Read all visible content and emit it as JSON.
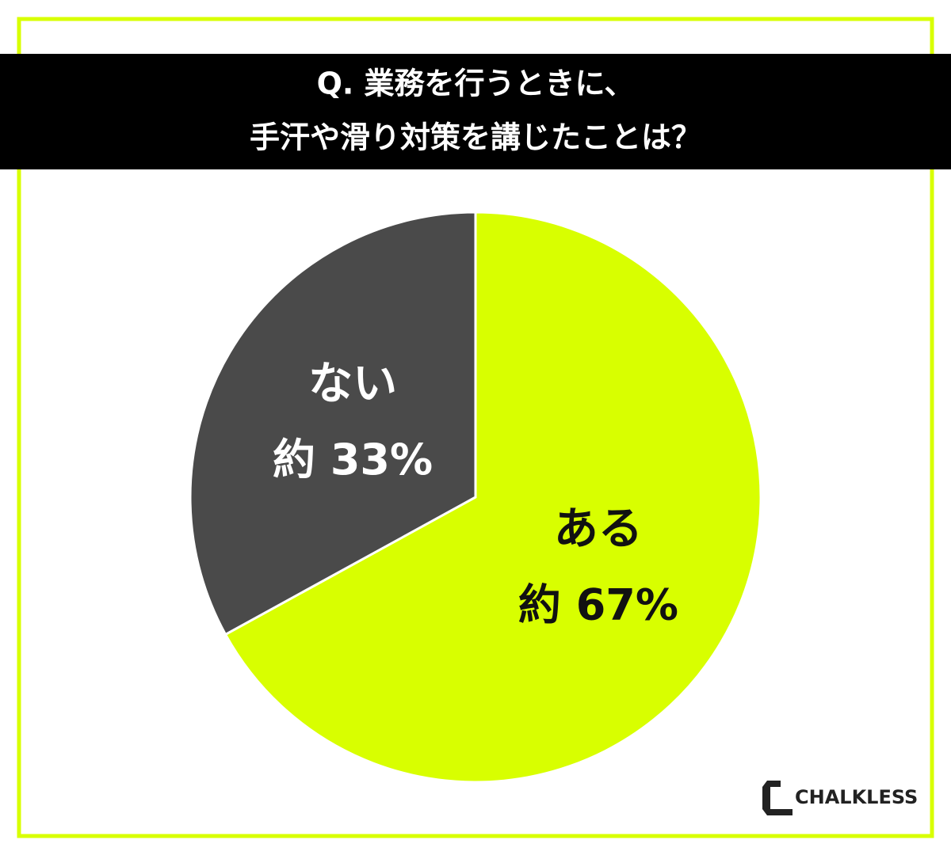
{
  "chart_data": {
    "type": "pie",
    "title": [
      "Q. 業務を行うときに、",
      "手汗や滑り対策を講じたことは？"
    ],
    "categories": [
      "ある",
      "ない"
    ],
    "values": [
      67,
      33
    ],
    "value_labels": [
      "約 67%",
      "約 33%"
    ],
    "colors": [
      "#d8ff00",
      "#4a4a4a"
    ],
    "label_colors": [
      "#111111",
      "#ffffff"
    ]
  },
  "logo": "CHALKLESS"
}
